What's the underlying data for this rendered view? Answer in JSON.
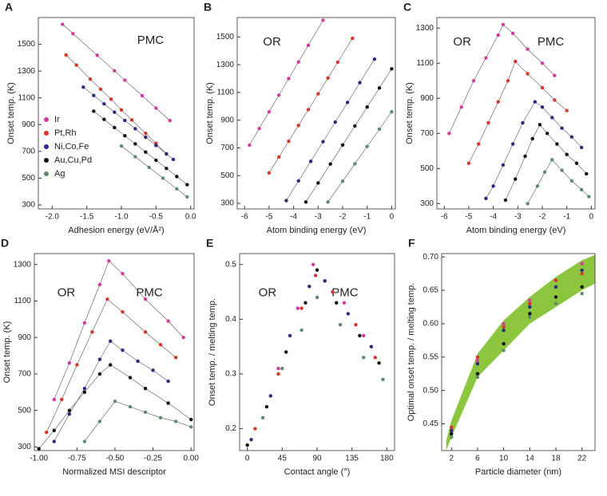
{
  "chart_data": [
    {
      "type": "scatter",
      "label": "A",
      "xlabel": "Adhesion energy (eV/Å²)",
      "ylabel": "Onset temp. (K)",
      "annotations": [
        "PMC"
      ],
      "lines": true,
      "legend": "lower left",
      "xlim": [
        -2.2,
        0.05
      ],
      "xticks": [
        {
          "value": -2,
          "label": "-2.0"
        },
        {
          "value": -1.5,
          "label": "-1.5"
        },
        {
          "value": -1,
          "label": "-1.0"
        },
        {
          "value": -0.5,
          "label": "-0.5"
        },
        {
          "value": 0,
          "label": "0.0"
        }
      ],
      "ylim": [
        270,
        1700
      ],
      "yticks": [
        300,
        500,
        700,
        900,
        1100,
        1300,
        1500
      ],
      "series": [
        {
          "name": "Ir",
          "color": "#d63aa0",
          "x": [
            -1.85,
            -1.7,
            -1.35,
            -1.1,
            -0.95,
            -0.7,
            -0.5,
            -0.3
          ],
          "values": [
            1650,
            1580,
            1418,
            1302,
            1232,
            1116,
            1023,
            930
          ]
        },
        {
          "name": "Pt,Rh",
          "color": "#d9352a",
          "x": [
            -1.8,
            -1.65,
            -1.45,
            -1.3,
            -1.15,
            -1.0,
            -0.85,
            -0.65,
            -0.5,
            -0.35
          ],
          "values": [
            1420,
            1345,
            1240,
            1165,
            1090,
            1010,
            935,
            835,
            760,
            680
          ]
        },
        {
          "name": "Ni,Co,Fe",
          "color": "#2d2b80",
          "x": [
            -1.55,
            -1.4,
            -1.25,
            -1.1,
            -0.95,
            -0.8,
            -0.65,
            -0.5,
            -0.35,
            -0.25
          ],
          "values": [
            1180,
            1118,
            1055,
            993,
            931,
            869,
            806,
            744,
            682,
            640
          ]
        },
        {
          "name": "Au,Cu,Pd",
          "color": "#111111",
          "x": [
            -1.4,
            -1.25,
            -1.1,
            -0.95,
            -0.8,
            -0.65,
            -0.5,
            -0.35,
            -0.2,
            -0.05
          ],
          "values": [
            1000,
            939,
            878,
            817,
            756,
            695,
            634,
            573,
            512,
            451
          ]
        },
        {
          "name": "Ag",
          "color": "#5e8c6a",
          "x": [
            -1.0,
            -0.8,
            -0.6,
            -0.4,
            -0.2,
            -0.05
          ],
          "values": [
            740,
            660,
            580,
            500,
            420,
            360
          ]
        }
      ]
    },
    {
      "type": "scatter",
      "label": "B",
      "xlabel": "Atom binding energy (eV)",
      "ylabel": "Onset temp. (K)",
      "annotations": [
        "OR"
      ],
      "lines": true,
      "xlim": [
        -6.3,
        0.15
      ],
      "xticks": [
        -6,
        -5,
        -4,
        -3,
        -2,
        -1,
        0
      ],
      "ylim": [
        260,
        1640
      ],
      "yticks": [
        300,
        500,
        700,
        900,
        1100,
        1300,
        1500
      ],
      "series": [
        {
          "color": "#d63aa0",
          "x": [
            -5.8,
            -5.4,
            -5,
            -4.6,
            -4.2,
            -3.8,
            -3.4,
            -2.8
          ],
          "values": [
            720,
            840,
            960,
            1080,
            1200,
            1320,
            1440,
            1620
          ]
        },
        {
          "color": "#d9352a",
          "x": [
            -5,
            -4.6,
            -4.2,
            -3.8,
            -3.4,
            -3,
            -2.6,
            -2.2,
            -1.6
          ],
          "values": [
            520,
            634,
            748,
            862,
            976,
            1090,
            1204,
            1318,
            1490
          ]
        },
        {
          "color": "#2d2b80",
          "x": [
            -4.3,
            -3.8,
            -3.3,
            -2.8,
            -2.3,
            -1.8,
            -1.3,
            -0.7
          ],
          "values": [
            320,
            462,
            603,
            745,
            886,
            1028,
            1170,
            1340
          ]
        },
        {
          "color": "#111111",
          "x": [
            -3.5,
            -3,
            -2.5,
            -2,
            -1.5,
            -1,
            -0.5,
            0
          ],
          "values": [
            310,
            447,
            584,
            721,
            858,
            995,
            1132,
            1270
          ]
        },
        {
          "color": "#5e8c6a",
          "x": [
            -2.6,
            -2,
            -1.5,
            -1,
            -0.5,
            0
          ],
          "values": [
            310,
            460,
            585,
            710,
            835,
            960
          ]
        }
      ]
    },
    {
      "type": "scatter",
      "label": "C",
      "xlabel": "Atom binding energy (eV)",
      "ylabel": "Onset temp. (K)",
      "annotations": [
        "OR",
        "PMC"
      ],
      "lines": true,
      "xlim": [
        -6.3,
        0.15
      ],
      "xticks": [
        -6,
        -5,
        -4,
        -3,
        -2,
        -1,
        0
      ],
      "ylim": [
        270,
        1360
      ],
      "yticks": [
        300,
        500,
        700,
        900,
        1100,
        1300
      ],
      "series": [
        {
          "color": "#d63aa0",
          "x": [
            -5.8,
            -5.3,
            -4.8,
            -4.3,
            -3.8,
            -3.6,
            -3.2,
            -2.6,
            -2.0,
            -1.5
          ],
          "values": [
            700,
            850,
            1000,
            1130,
            1260,
            1320,
            1270,
            1180,
            1100,
            1030
          ]
        },
        {
          "color": "#d9352a",
          "x": [
            -5,
            -4.6,
            -4.2,
            -3.8,
            -3.4,
            -3.1,
            -2.6,
            -2,
            -1.5,
            -1
          ],
          "values": [
            530,
            640,
            760,
            880,
            1000,
            1110,
            1040,
            960,
            890,
            830
          ]
        },
        {
          "color": "#2d2b80",
          "x": [
            -4.3,
            -4,
            -3.6,
            -3.2,
            -2.8,
            -2.3,
            -2,
            -1.6,
            -1.2,
            -0.8,
            -0.4
          ],
          "values": [
            330,
            400,
            520,
            640,
            760,
            880,
            850,
            790,
            730,
            680,
            620
          ]
        },
        {
          "color": "#111111",
          "x": [
            -3.5,
            -3.1,
            -2.7,
            -2.4,
            -2.1,
            -1.8,
            -1.4,
            -1,
            -0.6,
            -0.2
          ],
          "values": [
            320,
            440,
            570,
            670,
            750,
            700,
            640,
            580,
            530,
            470
          ]
        },
        {
          "color": "#5e8c6a",
          "x": [
            -2.6,
            -2.2,
            -1.9,
            -1.6,
            -1.2,
            -0.8,
            -0.4,
            -0.1
          ],
          "values": [
            300,
            400,
            480,
            550,
            490,
            430,
            380,
            340
          ]
        }
      ]
    },
    {
      "type": "scatter",
      "label": "D",
      "xlabel": "Normalized MSI descriptor",
      "ylabel": "Onset temp. (K)",
      "annotations": [
        "OR",
        "PMC"
      ],
      "lines": true,
      "xlim": [
        -1.03,
        0.02
      ],
      "xticks": [
        {
          "value": -1,
          "label": "-1.00"
        },
        {
          "value": -0.75,
          "label": "-0.75"
        },
        {
          "value": -0.5,
          "label": "-0.50"
        },
        {
          "value": -0.25,
          "label": "-0.25"
        },
        {
          "value": 0,
          "label": "0.00"
        }
      ],
      "ylim": [
        280,
        1360
      ],
      "yticks": [
        300,
        500,
        700,
        900,
        1100,
        1300
      ],
      "series": [
        {
          "color": "#d63aa0",
          "x": [
            -0.9,
            -0.8,
            -0.7,
            -0.6,
            -0.54,
            -0.45,
            -0.3,
            -0.15,
            -0.05
          ],
          "values": [
            560,
            760,
            980,
            1190,
            1320,
            1250,
            1110,
            990,
            900
          ]
        },
        {
          "color": "#d9352a",
          "x": [
            -0.95,
            -0.85,
            -0.75,
            -0.65,
            -0.55,
            -0.45,
            -0.3,
            -0.2,
            -0.1
          ],
          "values": [
            380,
            560,
            750,
            930,
            1110,
            1040,
            930,
            860,
            790
          ]
        },
        {
          "color": "#2d2b80",
          "x": [
            -0.9,
            -0.8,
            -0.7,
            -0.6,
            -0.53,
            -0.45,
            -0.35,
            -0.25,
            -0.15
          ],
          "values": [
            330,
            480,
            620,
            780,
            880,
            830,
            770,
            720,
            660
          ]
        },
        {
          "color": "#111111",
          "x": [
            -1,
            -0.9,
            -0.8,
            -0.7,
            -0.6,
            -0.53,
            -0.4,
            -0.3,
            -0.15,
            0
          ],
          "values": [
            290,
            390,
            500,
            600,
            700,
            750,
            680,
            620,
            540,
            450
          ]
        },
        {
          "color": "#5e8c6a",
          "x": [
            -0.7,
            -0.6,
            -0.5,
            -0.4,
            -0.3,
            -0.2,
            -0.1,
            0
          ],
          "values": [
            330,
            440,
            550,
            520,
            490,
            460,
            440,
            410
          ]
        }
      ]
    },
    {
      "type": "scatter",
      "label": "E",
      "xlabel": "Contact angle (°)",
      "ylabel": "Onset temp. / melting temp.",
      "annotations": [
        "OR",
        "PMC"
      ],
      "lines": false,
      "xlim": [
        -10,
        190
      ],
      "xticks": [
        0,
        45,
        90,
        135,
        180
      ],
      "ylim": [
        0.16,
        0.52
      ],
      "yticks": [
        0.2,
        0.3,
        0.4,
        0.5
      ],
      "series": [
        {
          "color": "#d63aa0",
          "x": [
            40,
            65,
            85,
            100,
            125,
            150
          ],
          "values": [
            0.31,
            0.42,
            0.5,
            0.47,
            0.43,
            0.37
          ]
        },
        {
          "color": "#d9352a",
          "x": [
            10,
            40,
            70,
            88,
            110,
            140,
            165
          ],
          "values": [
            0.2,
            0.3,
            0.42,
            0.48,
            0.45,
            0.39,
            0.33
          ]
        },
        {
          "color": "#2d2b80",
          "x": [
            5,
            30,
            55,
            80,
            100,
            130,
            160
          ],
          "values": [
            0.18,
            0.26,
            0.37,
            0.46,
            0.47,
            0.41,
            0.35
          ]
        },
        {
          "color": "#111111",
          "x": [
            0,
            25,
            50,
            75,
            90,
            115,
            145,
            170
          ],
          "values": [
            0.17,
            0.24,
            0.34,
            0.43,
            0.49,
            0.43,
            0.37,
            0.32
          ]
        },
        {
          "color": "#5e8c6a",
          "x": [
            20,
            45,
            70,
            90,
            120,
            150,
            175
          ],
          "values": [
            0.22,
            0.31,
            0.38,
            0.44,
            0.39,
            0.33,
            0.29
          ]
        }
      ]
    },
    {
      "type": "band",
      "label": "F",
      "xlabel": "Particle diameter (nm)",
      "ylabel": "Optimal onset temp. / melting temp.",
      "annotations": [],
      "lines": false,
      "xlim": [
        0.5,
        24
      ],
      "xticks": [
        2,
        6,
        10,
        14,
        18,
        22
      ],
      "ylim": [
        0.41,
        0.705
      ],
      "yticks": [
        0.45,
        {
          "value": 0.5,
          "label": "0.50"
        },
        0.55,
        {
          "value": 0.6,
          "label": "0.60"
        },
        0.65,
        {
          "value": 0.7,
          "label": "0.70"
        }
      ],
      "band": {
        "color": "#8cc63f",
        "x": [
          1.2,
          2,
          6,
          10,
          14,
          18,
          22,
          24
        ],
        "upper": [
          0.425,
          0.455,
          0.555,
          0.605,
          0.64,
          0.67,
          0.695,
          0.703
        ],
        "lower": [
          0.41,
          0.43,
          0.52,
          0.56,
          0.6,
          0.625,
          0.65,
          0.66
        ]
      },
      "series": [
        {
          "color": "#d63aa0",
          "x": [
            2,
            6,
            10,
            14,
            18,
            22
          ],
          "values": [
            0.44,
            0.545,
            0.6,
            0.635,
            0.665,
            0.69
          ]
        },
        {
          "color": "#d9352a",
          "x": [
            2,
            6,
            10,
            14,
            18,
            22
          ],
          "values": [
            0.445,
            0.55,
            0.595,
            0.63,
            0.665,
            0.675
          ]
        },
        {
          "color": "#2d2b80",
          "x": [
            2,
            6,
            10,
            14,
            18,
            22
          ],
          "values": [
            0.44,
            0.54,
            0.59,
            0.625,
            0.655,
            0.68
          ]
        },
        {
          "color": "#111111",
          "x": [
            2,
            6,
            10,
            14,
            18,
            22
          ],
          "values": [
            0.435,
            0.525,
            0.57,
            0.615,
            0.64,
            0.655
          ]
        },
        {
          "color": "#5e8c6a",
          "x": [
            2,
            6,
            10,
            14,
            18,
            22
          ],
          "values": [
            0.43,
            0.52,
            0.56,
            0.61,
            0.63,
            0.645
          ]
        }
      ]
    }
  ]
}
